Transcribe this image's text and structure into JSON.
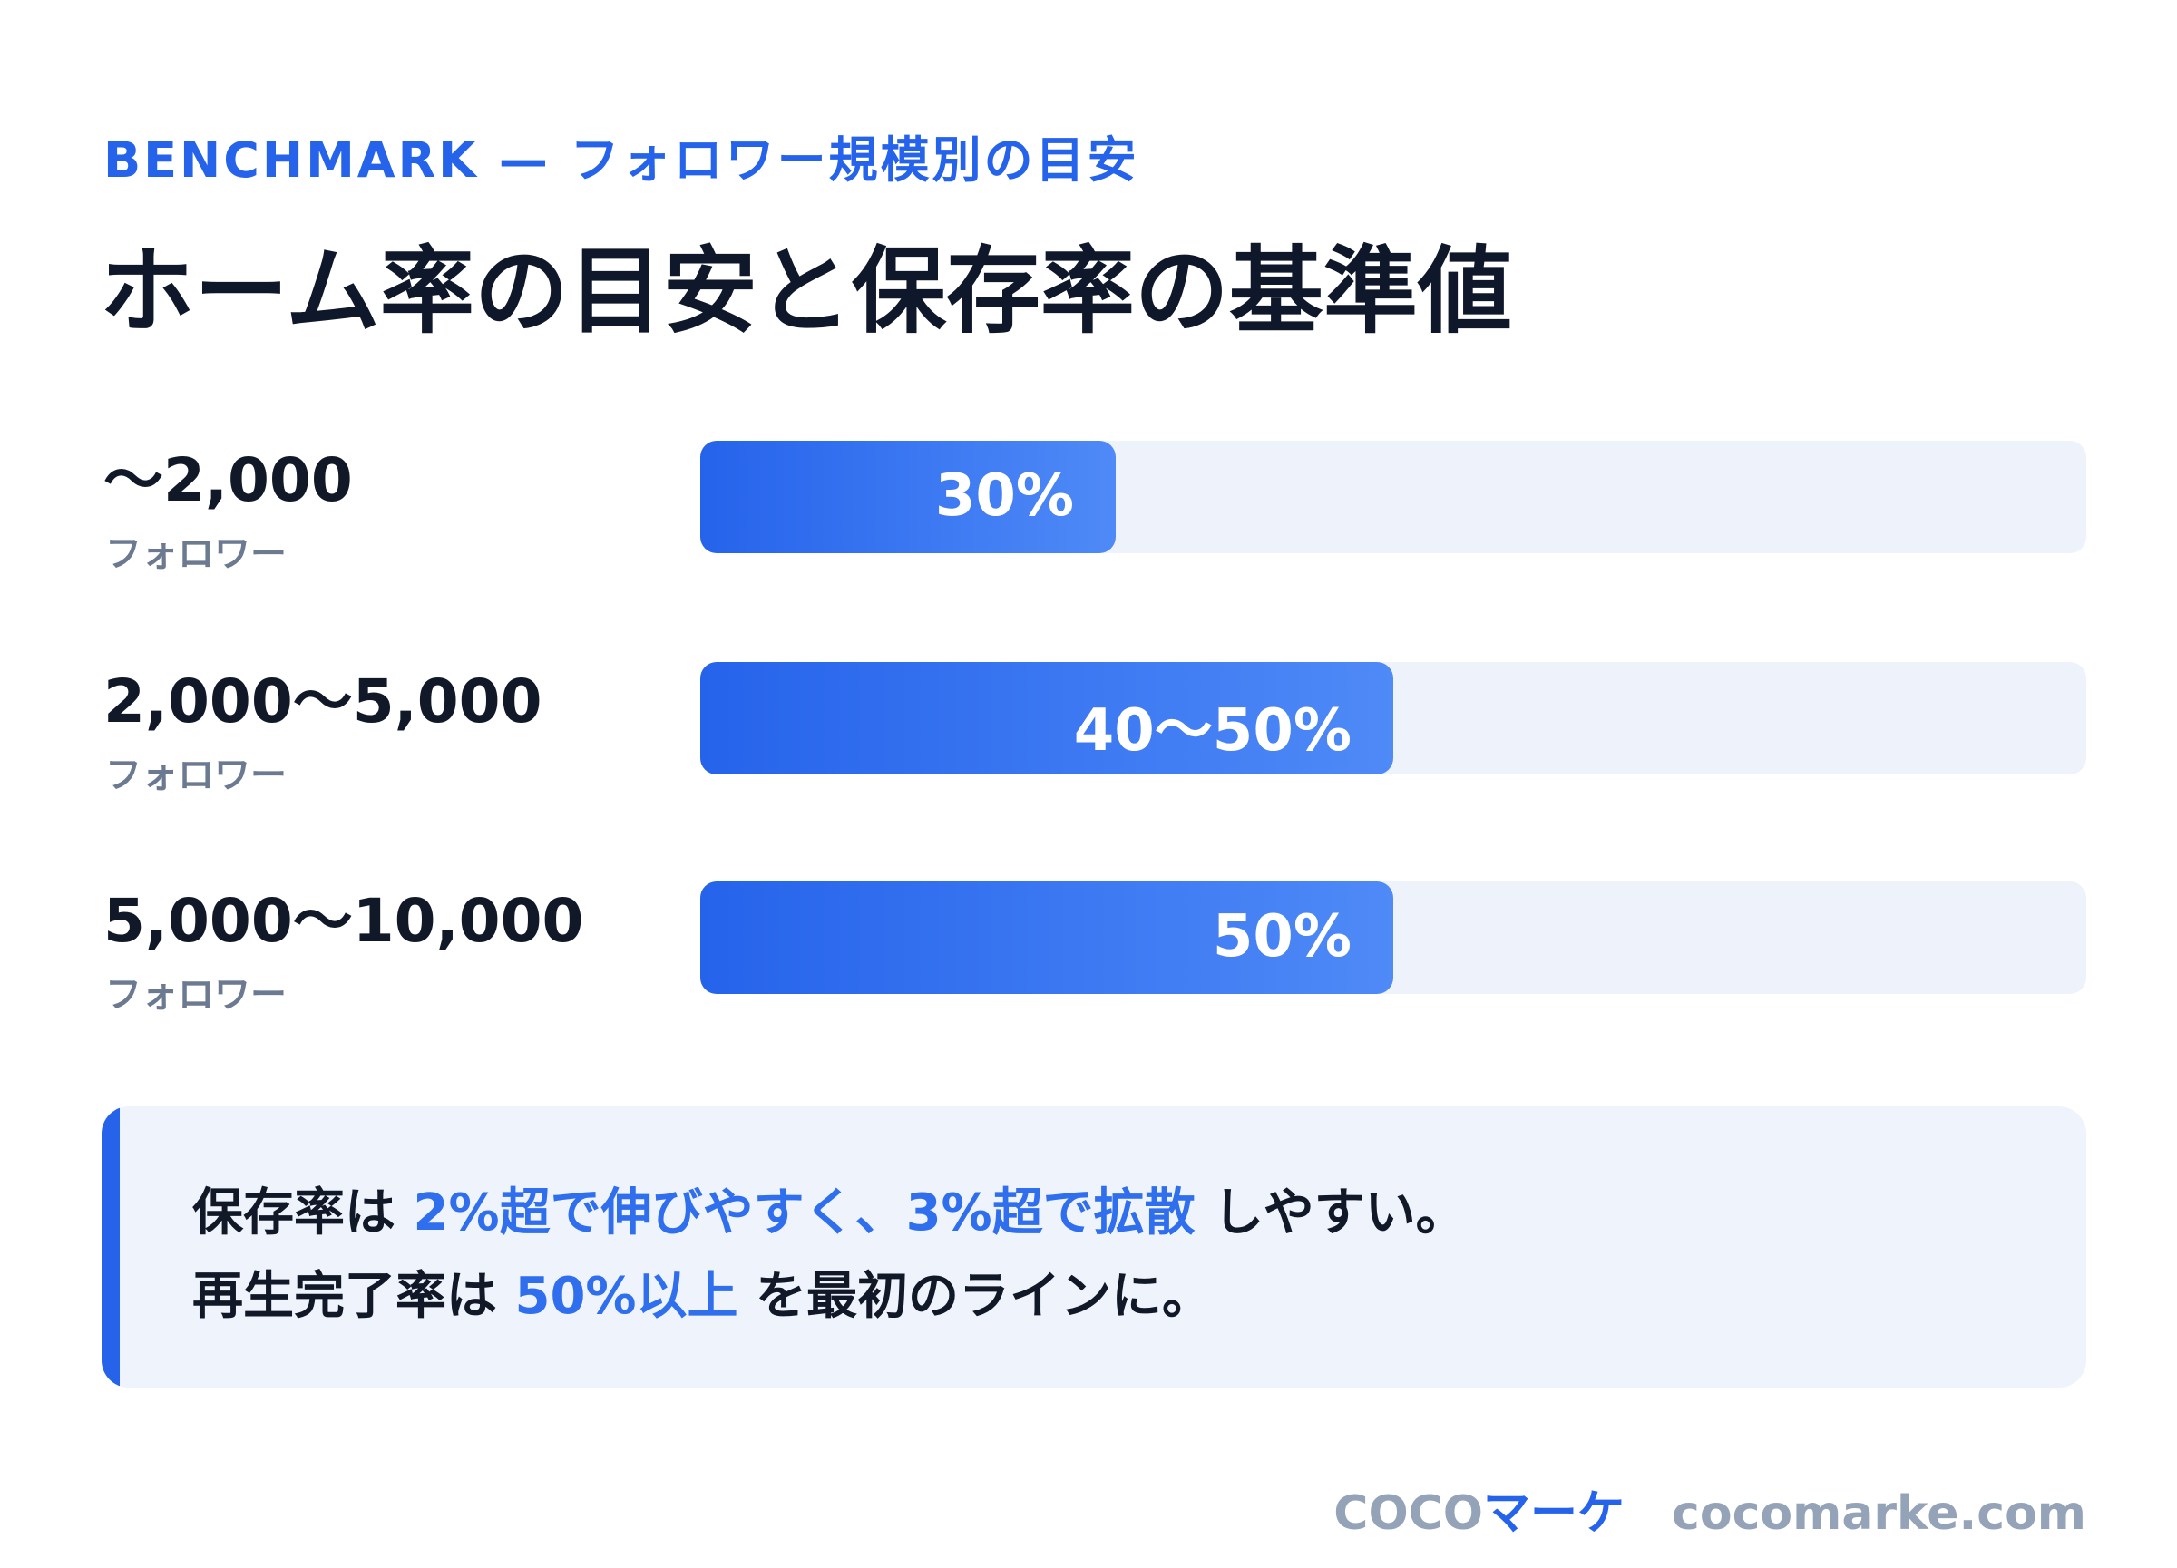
{
  "header": {
    "eyebrow": "BENCHMARK — フォロワー規模別の目安",
    "title": "ホーム率の目安と保存率の基準値"
  },
  "chart_data": {
    "type": "bar",
    "orientation": "horizontal",
    "title": "ホーム率の目安と保存率の基準値",
    "categories": [
      "〜2,000",
      "2,000〜5,000",
      "5,000〜10,000"
    ],
    "category_unit": "フォロワー",
    "values": [
      30,
      50,
      50
    ],
    "value_labels": [
      "30%",
      "40〜50%",
      "50%"
    ],
    "xlim": [
      0,
      100
    ],
    "grid": false,
    "legend": "none"
  },
  "note": {
    "line1": {
      "pre": "保存率は ",
      "highlight": "2%超で伸びやすく、3%超で拡散",
      "post": " しやすい。"
    },
    "line2": {
      "pre": "再生完了率は ",
      "highlight": "50%以上",
      "post": " を最初のラインに。"
    }
  },
  "footer": {
    "brand_part1": "COCO",
    "brand_part2": "マーケ",
    "domain": "cocomarke.com"
  },
  "colors": {
    "accent": "#2563eb",
    "bar_start": "#2563eb",
    "bar_end": "#4f8af7",
    "track": "#eef2fa",
    "note_bg": "#eff3fc"
  }
}
